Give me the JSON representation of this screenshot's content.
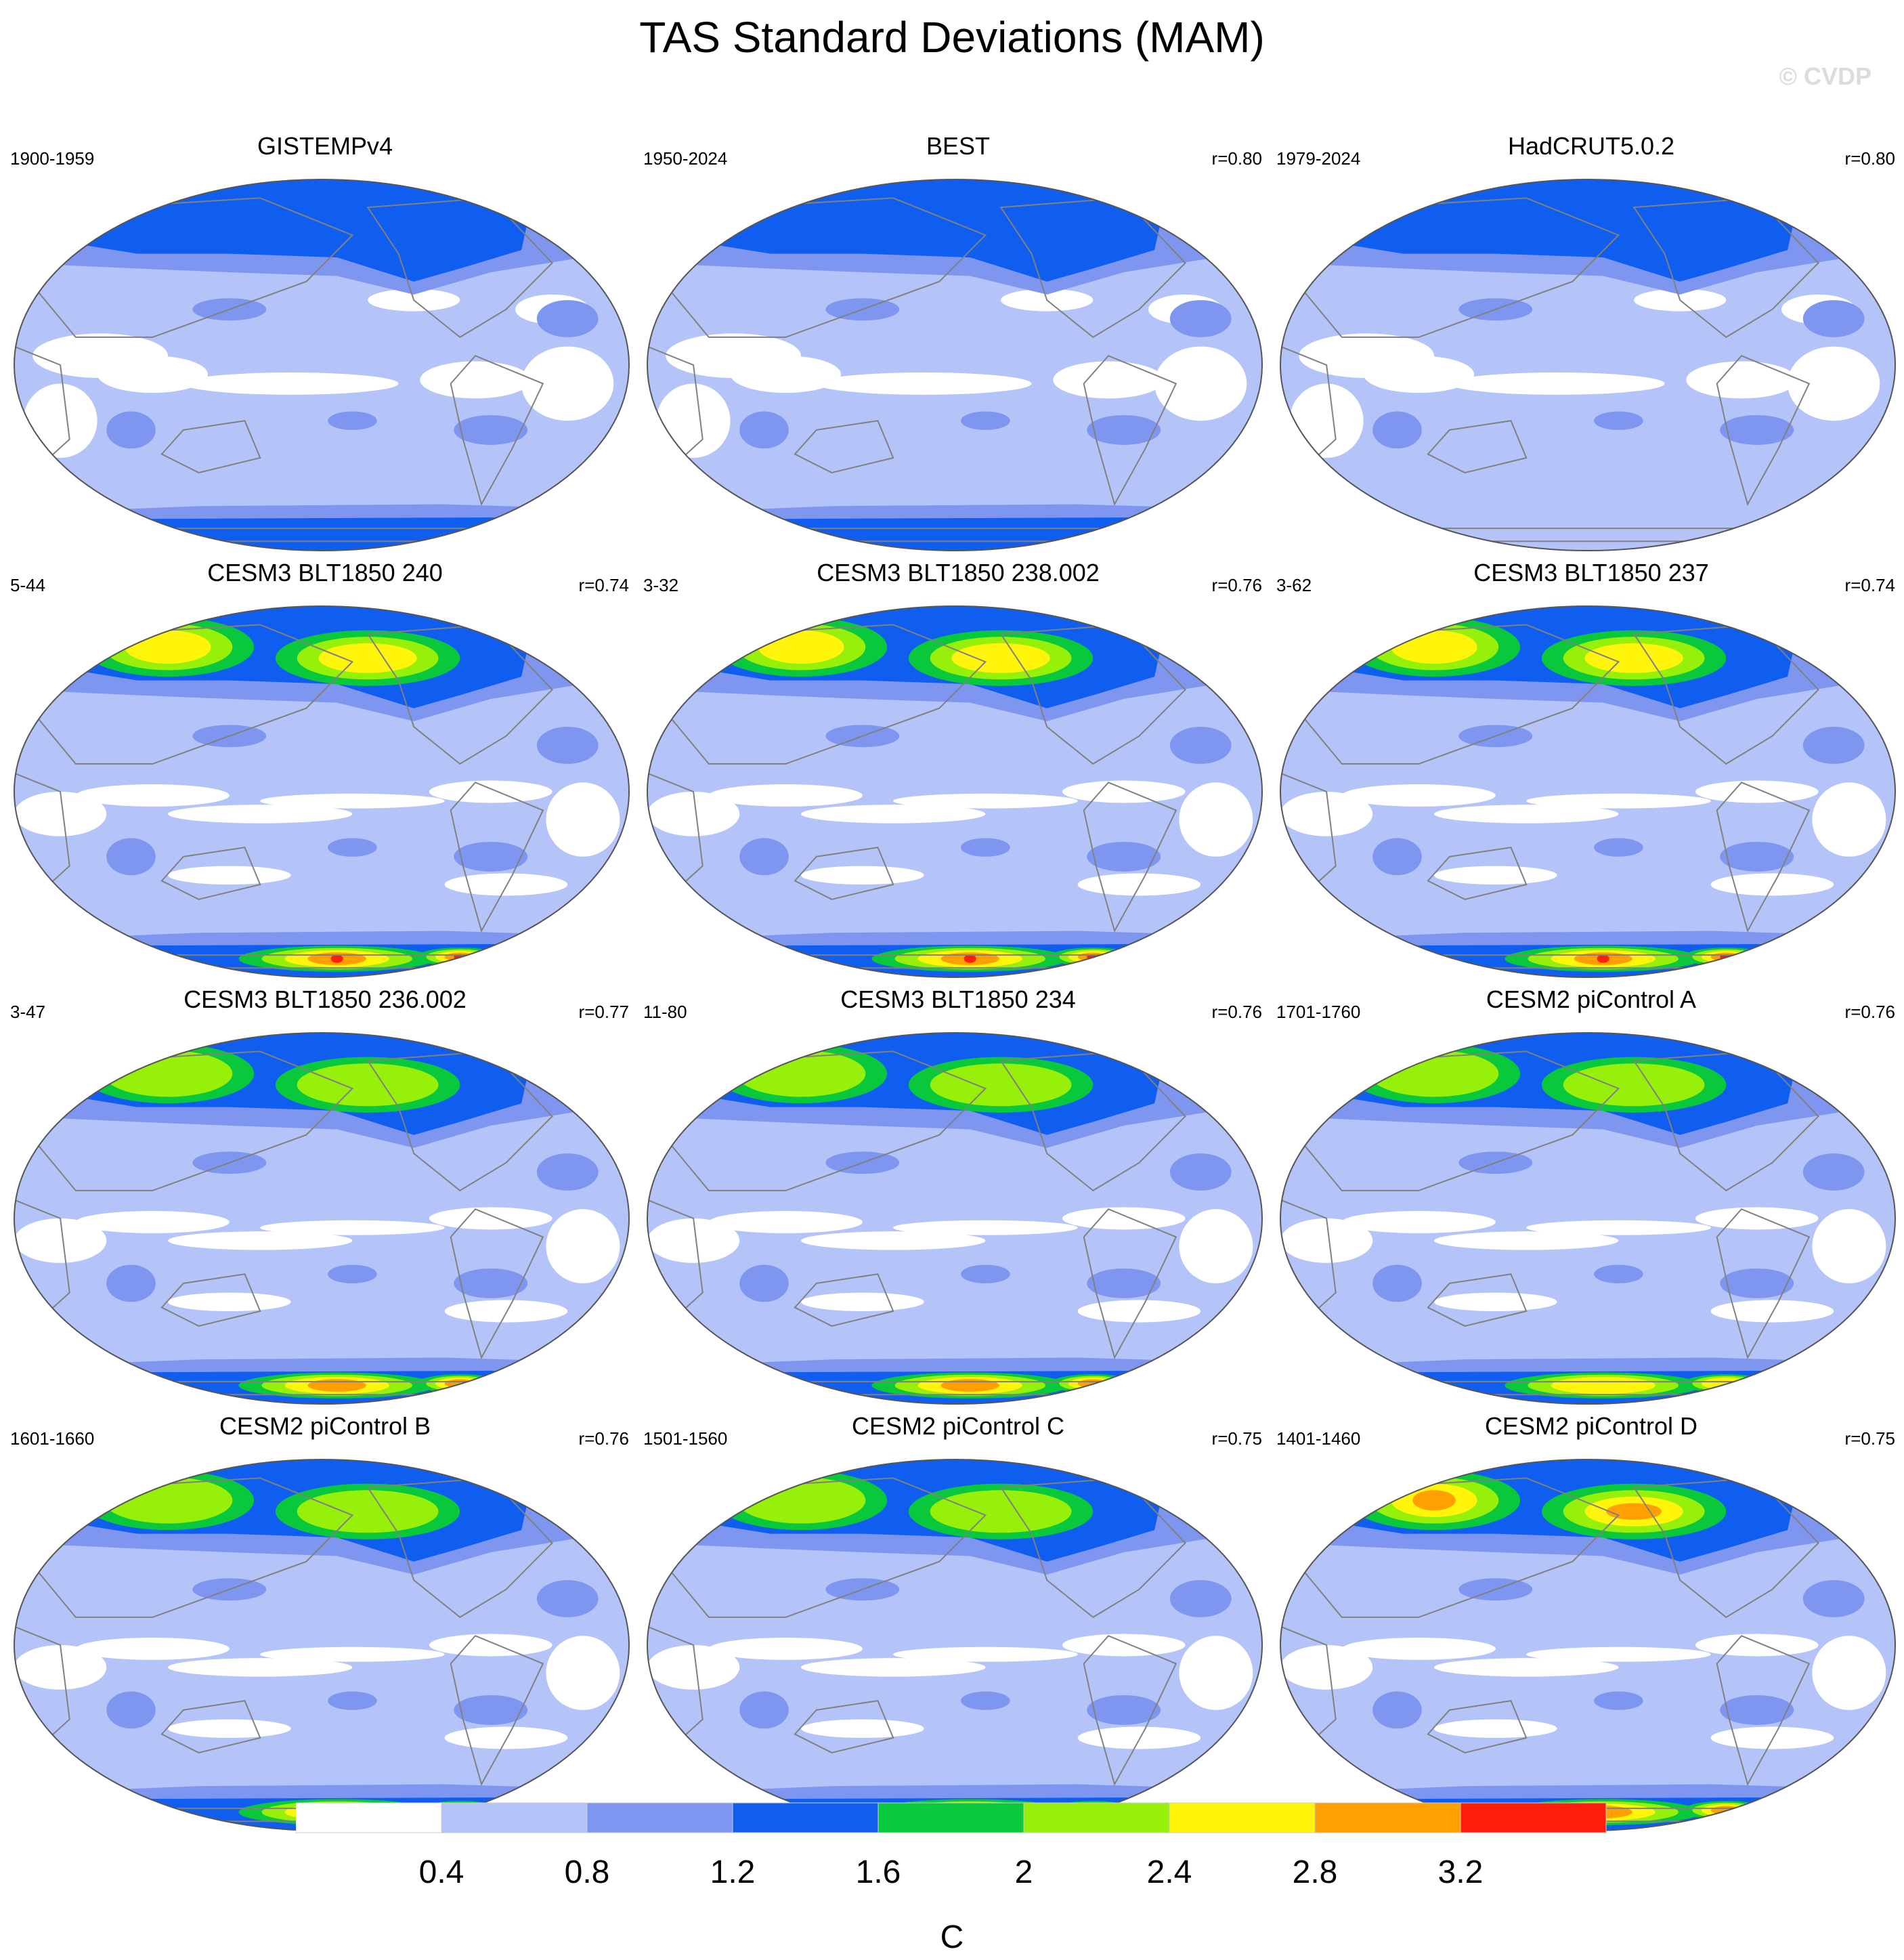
{
  "title": "TAS Standard Deviations (MAM)",
  "watermark": "© CVDP",
  "colorbar": {
    "unit": "C",
    "levels": [
      "0.4",
      "0.8",
      "1.2",
      "1.6",
      "2",
      "2.4",
      "2.8",
      "3.2"
    ],
    "colors": [
      "#ffffff",
      "#b4c4f8",
      "#7f96f0",
      "#0f5ef0",
      "#0ac83c",
      "#96f00a",
      "#fff50a",
      "#ffa000",
      "#ff1e0a"
    ]
  },
  "colors": {
    "coastline": "#808080",
    "map_outline": "#555555"
  },
  "panels": [
    {
      "title": "GISTEMPv4",
      "period": "1900-1959",
      "r": "",
      "kind": "obs",
      "nh": 2,
      "sh": 2
    },
    {
      "title": "BEST",
      "period": "1950-2024",
      "r": "r=0.80",
      "kind": "obs",
      "nh": 3,
      "sh": 2
    },
    {
      "title": "HadCRUT5.0.2",
      "period": "1979-2024",
      "r": "r=0.80",
      "kind": "obs",
      "nh": 2,
      "sh": 0
    },
    {
      "title": "CESM3 BLT1850 240",
      "period": "5-44",
      "r": "r=0.74",
      "kind": "model",
      "nh": 6,
      "sh": 8
    },
    {
      "title": "CESM3 BLT1850 238.002",
      "period": "3-32",
      "r": "r=0.76",
      "kind": "model",
      "nh": 6,
      "sh": 8
    },
    {
      "title": "CESM3 BLT1850 237",
      "period": "3-62",
      "r": "r=0.74",
      "kind": "model",
      "nh": 6,
      "sh": 8
    },
    {
      "title": "CESM3 BLT1850 236.002",
      "period": "3-47",
      "r": "r=0.77",
      "kind": "model",
      "nh": 5,
      "sh": 7
    },
    {
      "title": "CESM3 BLT1850 234",
      "period": "11-80",
      "r": "r=0.76",
      "kind": "model",
      "nh": 5,
      "sh": 7
    },
    {
      "title": "CESM2 piControl A",
      "period": "1701-1760",
      "r": "r=0.76",
      "kind": "model",
      "nh": 5,
      "sh": 6
    },
    {
      "title": "CESM2 piControl B",
      "period": "1601-1660",
      "r": "r=0.76",
      "kind": "model",
      "nh": 5,
      "sh": 6
    },
    {
      "title": "CESM2 piControl C",
      "period": "1501-1560",
      "r": "r=0.75",
      "kind": "model",
      "nh": 5,
      "sh": 7
    },
    {
      "title": "CESM2 piControl D",
      "period": "1401-1460",
      "r": "r=0.75",
      "kind": "model",
      "nh": 7,
      "sh": 7
    }
  ]
}
